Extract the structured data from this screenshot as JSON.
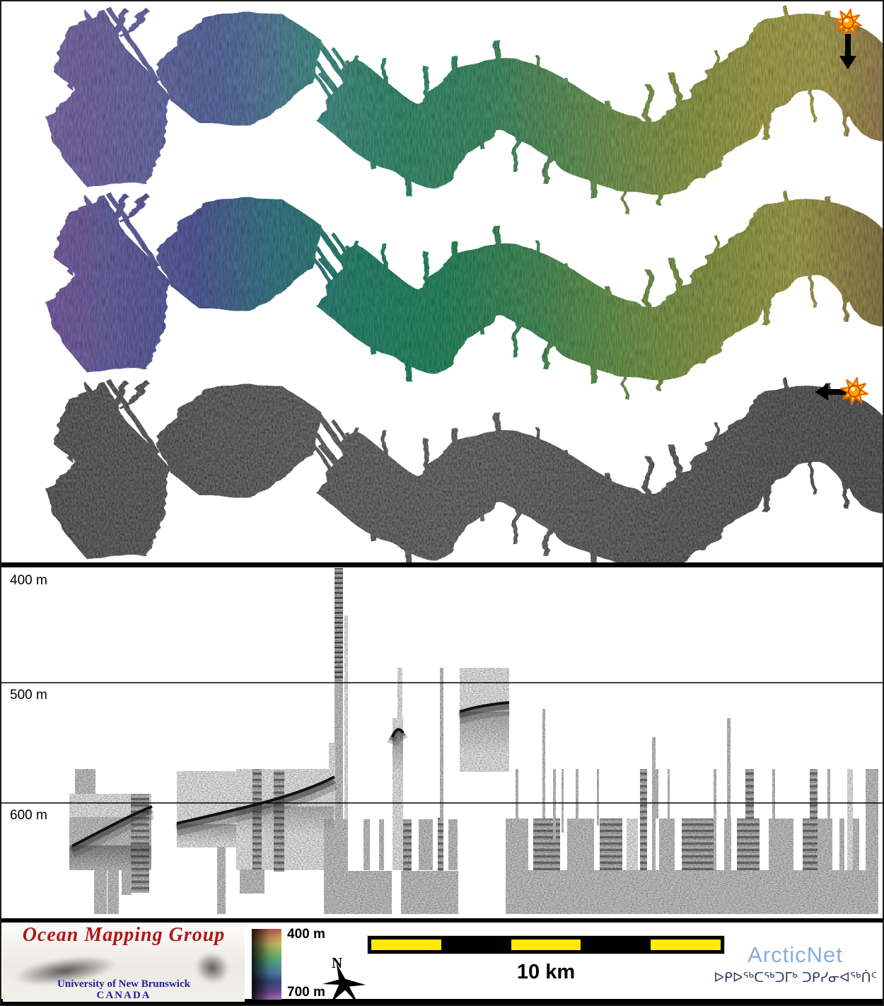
{
  "figure": {
    "panels": [
      {
        "name": "bathymetry-map-sun-top",
        "icons": [
          "sunburst-icon",
          "arrow-down-icon"
        ]
      },
      {
        "name": "bathymetry-map-sun-side",
        "icons": [
          "sunburst-icon",
          "arrow-left-icon"
        ]
      },
      {
        "name": "backscatter-map",
        "icons": []
      },
      {
        "name": "subbottom-profile",
        "icons": []
      }
    ]
  },
  "profile": {
    "unit": "m",
    "tick_labels": [
      "400 m",
      "500 m",
      "600 m"
    ],
    "tick_values": [
      400,
      500,
      600
    ]
  },
  "legend": {
    "omg_title": "Ocean Mapping Group",
    "omg_university": "University of New Brunswick",
    "omg_country": "CANADA",
    "colorbar_top": "400 m",
    "colorbar_bottom": "700 m",
    "compass_label": "N",
    "scale_label": "10 km",
    "arcticnet_name": "ArcticNet",
    "arcticnet_inuktitut": "ᐅᑭᐅᖅᑕᖅᑐᒥᒃ ᑐᑭᓯᓂᐊᖅᑏᑦ"
  },
  "colors": {
    "scalebar_yellow": "#ffec00",
    "omg_red": "#b01717",
    "omg_blue": "#1f1f9e",
    "arcticnet_blue": "#89aeda",
    "sun_yellow": "#ffdf00",
    "sun_orange": "#ff8c00",
    "depth_shallow": "#c05a50",
    "depth_deep": "#a06ec0"
  }
}
